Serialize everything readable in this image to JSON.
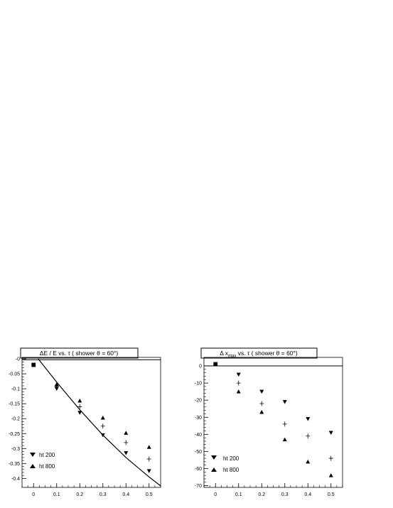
{
  "chart_data": [
    {
      "type": "scatter",
      "title": "ΔE / E vs. τ ( shower θ = 60°)",
      "xlabel": "",
      "ylabel": "",
      "xlim": [
        -0.05,
        0.55
      ],
      "ylim": [
        -0.43,
        0.005
      ],
      "x_ticks": [
        0,
        0.1,
        0.2,
        0.3,
        0.4,
        0.5
      ],
      "x_tick_labels": [
        "0",
        "0.1",
        "0.2",
        "0.3",
        "0.4",
        "0.5"
      ],
      "y_ticks": [
        0,
        -0.05,
        -0.1,
        -0.15,
        -0.2,
        -0.25,
        -0.3,
        -0.35,
        -0.4
      ],
      "y_tick_labels": [
        "-0",
        "-0.05",
        "-0.1",
        "-0.15",
        "-0.2",
        "-0.25",
        "-0.3",
        "-0.35",
        "-0.4"
      ],
      "x_tick_dec": 1,
      "y_tick_dec": 2,
      "series": [
        {
          "name": "ht 200",
          "marker": "triangle-down",
          "x": [
            0,
            0.1,
            0.2,
            0.3,
            0.4,
            0.5
          ],
          "y": [
            -0.02,
            -0.1,
            -0.18,
            -0.255,
            -0.315,
            -0.375
          ]
        },
        {
          "name": "ht 800",
          "marker": "triangle-up",
          "x": [
            0,
            0.1,
            0.2,
            0.3,
            0.4,
            0.5
          ],
          "y": [
            -0.02,
            -0.085,
            -0.14,
            -0.197,
            -0.248,
            -0.295
          ]
        },
        {
          "name": "",
          "marker": "cross",
          "x": [
            0,
            0.1,
            0.2,
            0.3,
            0.4,
            0.5
          ],
          "y": [
            -0.02,
            -0.092,
            -0.16,
            -0.225,
            -0.28,
            -0.335
          ]
        },
        {
          "name": "",
          "marker": "line",
          "x": [
            0.02,
            0.1,
            0.2,
            0.3,
            0.4,
            0.5,
            0.55
          ],
          "y": [
            0.0,
            -0.078,
            -0.17,
            -0.255,
            -0.33,
            -0.395,
            -0.425
          ]
        }
      ],
      "reference_line_y": -0.003,
      "legend_position": "bottom-left"
    },
    {
      "type": "scatter",
      "title": "Δ x_max vs. τ ( shower θ = 60°)",
      "xlabel": "",
      "ylabel": "",
      "xlim": [
        -0.05,
        0.55
      ],
      "ylim": [
        -71,
        5
      ],
      "x_ticks": [
        0,
        0.1,
        0.2,
        0.3,
        0.4,
        0.5
      ],
      "x_tick_labels": [
        "0",
        "0.1",
        "0.2",
        "0.3",
        "0.4",
        "0.5"
      ],
      "y_ticks": [
        0,
        -10,
        -20,
        -30,
        -40,
        -50,
        -60,
        -70
      ],
      "y_tick_labels": [
        "0",
        "-10",
        "-20",
        "-30",
        "-40",
        "-50",
        "-60",
        "-70"
      ],
      "x_tick_dec": 1,
      "y_tick_dec": 0,
      "series": [
        {
          "name": "ht 200",
          "marker": "triangle-down",
          "x": [
            0,
            0.1,
            0.2,
            0.3,
            0.4,
            0.5
          ],
          "y": [
            1,
            -5,
            -15,
            -21,
            -31,
            -39
          ]
        },
        {
          "name": "ht 800",
          "marker": "triangle-up",
          "x": [
            0,
            0.1,
            0.2,
            0.3,
            0.4,
            0.5
          ],
          "y": [
            1,
            -15,
            -27,
            -43,
            -56,
            -64
          ]
        },
        {
          "name": "",
          "marker": "cross",
          "x": [
            0,
            0.1,
            0.2,
            0.3,
            0.4,
            0.5
          ],
          "y": [
            1,
            -10,
            -22,
            -34,
            -41,
            -54
          ]
        }
      ],
      "reference_line_y": 0,
      "legend_position": "bottom-left"
    }
  ]
}
